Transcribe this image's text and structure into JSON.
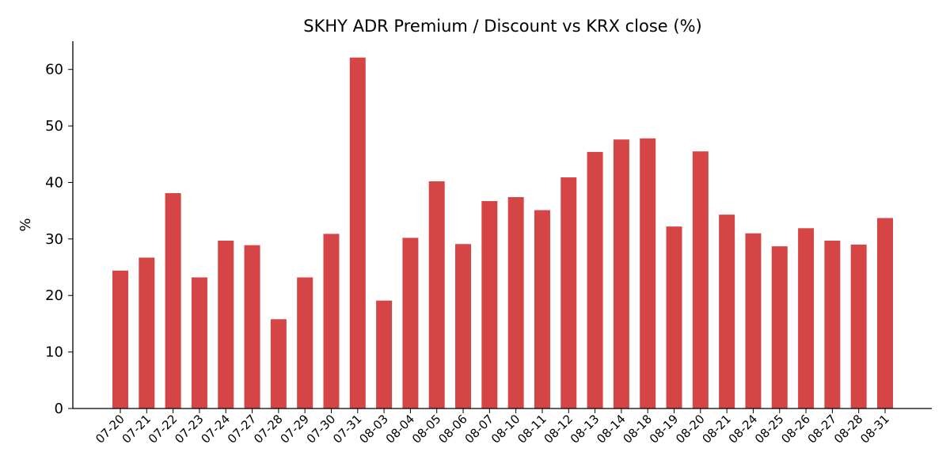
{
  "chart_data": {
    "type": "bar",
    "title": "SKHY ADR Premium / Discount vs KRX close (%)",
    "xlabel": "",
    "ylabel": "%",
    "ylim": [
      0,
      65
    ],
    "yticks": [
      0,
      10,
      20,
      30,
      40,
      50,
      60
    ],
    "grid": false,
    "bar_color": "#d64545",
    "categories": [
      "07-20",
      "07-21",
      "07-22",
      "07-23",
      "07-24",
      "07-27",
      "07-28",
      "07-29",
      "07-30",
      "07-31",
      "08-03",
      "08-04",
      "08-05",
      "08-06",
      "08-07",
      "08-10",
      "08-11",
      "08-12",
      "08-13",
      "08-14",
      "08-18",
      "08-19",
      "08-20",
      "08-21",
      "08-24",
      "08-25",
      "08-26",
      "08-27",
      "08-28",
      "08-31"
    ],
    "values": [
      24.4,
      26.7,
      38.1,
      23.2,
      29.7,
      28.9,
      15.8,
      23.2,
      30.9,
      62.1,
      19.1,
      30.2,
      40.2,
      29.1,
      36.7,
      37.4,
      35.1,
      40.9,
      45.4,
      47.6,
      47.8,
      32.2,
      45.5,
      34.3,
      31.0,
      28.7,
      31.9,
      29.7,
      29.0,
      33.7
    ]
  }
}
